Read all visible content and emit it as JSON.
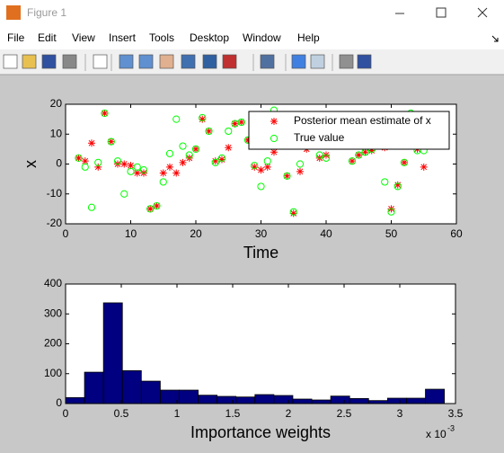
{
  "window": {
    "title": "Figure 1",
    "menu": [
      "File",
      "Edit",
      "View",
      "Insert",
      "Tools",
      "Desktop",
      "Window",
      "Help"
    ]
  },
  "chart_data": [
    {
      "type": "scatter",
      "xlabel": "Time",
      "ylabel": "x",
      "x": [
        2,
        3,
        4,
        5,
        6,
        7,
        8,
        9,
        10,
        11,
        12,
        13,
        14,
        15,
        16,
        17,
        18,
        19,
        20,
        21,
        22,
        23,
        24,
        25,
        26,
        27,
        28,
        29,
        30,
        31,
        32,
        33,
        34,
        35,
        36,
        37,
        38,
        39,
        40,
        41,
        42,
        43,
        44,
        45,
        46,
        47,
        48,
        49,
        50,
        51,
        52,
        53,
        54,
        55
      ],
      "series": [
        {
          "name": "Posterior mean estimate of x",
          "color": "#ff0000",
          "marker": "star",
          "values": [
            2,
            1,
            7,
            -1,
            17,
            7.5,
            0,
            0,
            -0.5,
            -3,
            -3,
            -15,
            -14,
            -3,
            -1,
            -3,
            0.5,
            2,
            5,
            15,
            11,
            1,
            1.5,
            5.5,
            13.5,
            14,
            8,
            -1,
            -2,
            -1,
            4,
            10,
            -4,
            -16.5,
            -2.5,
            5,
            8,
            2,
            3,
            9,
            10,
            8,
            1,
            3,
            4,
            4.5,
            7,
            5.5,
            -15,
            -7,
            0.5,
            12,
            5,
            -1
          ]
        },
        {
          "name": "True value",
          "color": "#00ff00",
          "marker": "circle",
          "values": [
            2,
            -1,
            -14.5,
            0.5,
            17,
            7.5,
            1,
            -10,
            -2.5,
            -1,
            -2,
            -15,
            -14,
            -6,
            3.5,
            15,
            6,
            3,
            5,
            15.5,
            11,
            0.5,
            2,
            11,
            13.5,
            14,
            8,
            -0.5,
            -7.5,
            1,
            18,
            12,
            -4,
            -16,
            0,
            6,
            9,
            3,
            2,
            10,
            11,
            9,
            1,
            3,
            4,
            5,
            8,
            -6,
            -16,
            -7.5,
            0.5,
            17,
            4.5,
            4.5
          ]
        }
      ],
      "xlim": [
        0,
        60
      ],
      "xticks": [
        0,
        10,
        20,
        30,
        40,
        50,
        60
      ],
      "ylim": [
        -20,
        20
      ],
      "yticks": [
        -20,
        -10,
        0,
        10,
        20
      ],
      "legend": "northeast",
      "grid": false
    },
    {
      "type": "histogram",
      "xlabel": "Importance weights",
      "x_multiplier": {
        "base": "x 10",
        "exponent": "-3"
      },
      "bins": [
        0,
        0.17,
        0.34,
        0.51,
        0.68,
        0.85,
        1.02,
        1.19,
        1.36,
        1.53,
        1.7,
        1.87,
        2.04,
        2.21,
        2.38,
        2.55,
        2.72,
        2.89,
        3.06,
        3.23,
        3.4
      ],
      "values": [
        20,
        105,
        337,
        110,
        75,
        45,
        45,
        28,
        24,
        22,
        30,
        27,
        15,
        12,
        25,
        17,
        10,
        18,
        18,
        48
      ],
      "color": "#000080",
      "xlim": [
        0,
        3.5
      ],
      "xticks": [
        0,
        0.5,
        1,
        1.5,
        2,
        2.5,
        3,
        3.5
      ],
      "ylim": [
        0,
        400
      ],
      "yticks": [
        0,
        100,
        200,
        300,
        400
      ],
      "grid": false
    }
  ]
}
